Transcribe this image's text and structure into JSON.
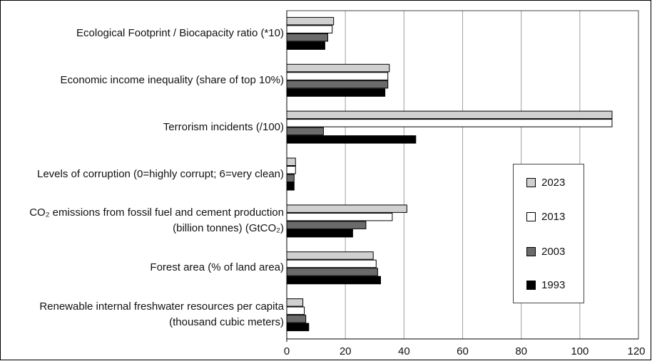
{
  "chart_data": {
    "type": "bar",
    "orientation": "horizontal",
    "categories": [
      [
        "Ecological Footprint / Biocapacity ratio (*10)"
      ],
      [
        "Economic income inequality (share of top 10%)"
      ],
      [
        "Terrorism incidents (/100)"
      ],
      [
        "Levels of corruption (0=highly corrupt; 6=very clean)"
      ],
      [
        "CO₂ emissions from fossil fuel and cement production",
        "(billion tonnes)  (GtCO₂)"
      ],
      [
        "Forest area (% of land area)"
      ],
      [
        "Renewable internal freshwater resources per capita",
        "(thousand cubic meters)"
      ]
    ],
    "series": [
      {
        "name": "2023",
        "color": "#d0d0d0",
        "values": [
          16,
          35,
          111,
          3,
          41,
          29.5,
          5.5
        ]
      },
      {
        "name": "2013",
        "color": "#ffffff",
        "values": [
          15.5,
          34.5,
          111,
          3,
          36,
          30.5,
          6
        ]
      },
      {
        "name": "2003",
        "color": "#6b6b6b",
        "values": [
          14,
          34.5,
          12.5,
          2.5,
          27,
          31,
          6.5
        ]
      },
      {
        "name": "1993",
        "color": "#000000",
        "values": [
          13,
          33.5,
          44,
          2.5,
          22.5,
          32,
          7.5
        ]
      }
    ],
    "xlim": [
      0,
      120
    ],
    "xticks": [
      0,
      20,
      40,
      60,
      80,
      100,
      120
    ],
    "grid": "vertical",
    "legend_position": "right"
  }
}
